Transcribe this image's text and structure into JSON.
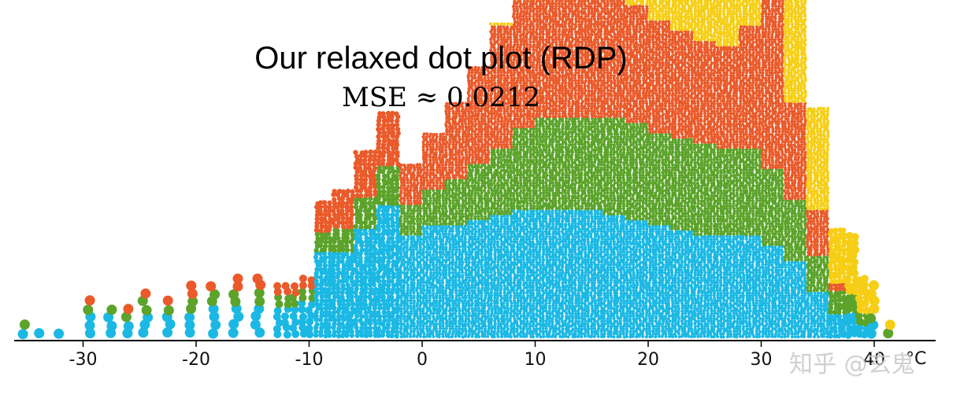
{
  "chart_data": {
    "type": "scatter",
    "title": "Our relaxed dot plot (RDP)",
    "subtitle": "MSE ≈ 0.0212",
    "xlabel": "",
    "ylabel": "",
    "xlim": [
      -36,
      45
    ],
    "x_ticks": [
      -30,
      -20,
      -10,
      0,
      10,
      20,
      30,
      40
    ],
    "x_tick_labels": [
      "-30",
      "-20",
      "-10",
      "0",
      "10",
      "20",
      "30",
      "40"
    ],
    "x_unit_label": "°C",
    "grid": false,
    "legend": "none",
    "series": [
      {
        "color": "#1BB8E4"
      },
      {
        "color": "#5BA32A"
      },
      {
        "color": "#EA5A2A"
      },
      {
        "color": "#F6CE15"
      }
    ],
    "bins": [
      {
        "x": -35,
        "counts": [
          1,
          1,
          0,
          0
        ]
      },
      {
        "x": -34,
        "counts": [
          1,
          0,
          0,
          0
        ]
      },
      {
        "x": -31,
        "counts": [
          1,
          0,
          0,
          0
        ]
      },
      {
        "x": -29,
        "counts": [
          3,
          1,
          1,
          0
        ]
      },
      {
        "x": -27,
        "counts": [
          3,
          1,
          0,
          0
        ]
      },
      {
        "x": -26,
        "counts": [
          2,
          1,
          1,
          0
        ]
      },
      {
        "x": -24,
        "counts": [
          3,
          2,
          1,
          0
        ]
      },
      {
        "x": -22,
        "counts": [
          3,
          1,
          1,
          0
        ]
      },
      {
        "x": -20,
        "counts": [
          3,
          2,
          2,
          0
        ]
      },
      {
        "x": -18,
        "counts": [
          4,
          2,
          1,
          0
        ]
      },
      {
        "x": -16,
        "counts": [
          4,
          2,
          2,
          0
        ]
      },
      {
        "x": -14,
        "counts": [
          4,
          2,
          2,
          0
        ]
      },
      {
        "x": -12,
        "counts": [
          5,
          2,
          2,
          0
        ]
      },
      {
        "x": -10,
        "counts": [
          6,
          2,
          2,
          0
        ]
      },
      {
        "x": -9,
        "counts": [
          22,
          5,
          8,
          0
        ]
      },
      {
        "x": -7,
        "counts": [
          22,
          6,
          10,
          0
        ]
      },
      {
        "x": -5,
        "counts": [
          28,
          8,
          12,
          0
        ]
      },
      {
        "x": -3,
        "counts": [
          34,
          10,
          14,
          0
        ]
      },
      {
        "x": -1,
        "counts": [
          40,
          12,
          16,
          0
        ]
      },
      {
        "x": 1,
        "counts": [
          44,
          14,
          22,
          0
        ]
      },
      {
        "x": 3,
        "counts": [
          44,
          18,
          30,
          0
        ]
      },
      {
        "x": 5,
        "counts": [
          46,
          22,
          38,
          0
        ]
      },
      {
        "x": 7,
        "counts": [
          48,
          26,
          48,
          1
        ]
      },
      {
        "x": 9,
        "counts": [
          50,
          32,
          50,
          2
        ]
      },
      {
        "x": 11,
        "counts": [
          50,
          36,
          50,
          4
        ]
      },
      {
        "x": 13,
        "counts": [
          50,
          36,
          54,
          10
        ]
      },
      {
        "x": 15,
        "counts": [
          50,
          36,
          52,
          18
        ]
      },
      {
        "x": 17,
        "counts": [
          48,
          38,
          50,
          28
        ]
      },
      {
        "x": 19,
        "counts": [
          46,
          38,
          46,
          42
        ]
      },
      {
        "x": 21,
        "counts": [
          44,
          36,
          44,
          48
        ]
      },
      {
        "x": 23,
        "counts": [
          42,
          36,
          42,
          54
        ]
      },
      {
        "x": 25,
        "counts": [
          40,
          36,
          40,
          58
        ]
      },
      {
        "x": 27,
        "counts": [
          40,
          34,
          40,
          62
        ]
      },
      {
        "x": 29,
        "counts": [
          40,
          34,
          48,
          72
        ]
      },
      {
        "x": 31,
        "counts": [
          36,
          30,
          80,
          92
        ]
      },
      {
        "x": 33,
        "counts": [
          30,
          24,
          38,
          56
        ]
      },
      {
        "x": 35,
        "counts": [
          18,
          14,
          18,
          40
        ]
      },
      {
        "x": 37,
        "counts": [
          6,
          6,
          2,
          14
        ]
      },
      {
        "x": 38,
        "counts": [
          4,
          3,
          0,
          10
        ]
      },
      {
        "x": 39,
        "counts": [
          2,
          2,
          0,
          6
        ]
      },
      {
        "x": 40,
        "counts": [
          2,
          1,
          0,
          4
        ]
      },
      {
        "x": 42,
        "counts": [
          0,
          1,
          0,
          1
        ]
      }
    ]
  },
  "watermark": "知乎 @玄鬼"
}
